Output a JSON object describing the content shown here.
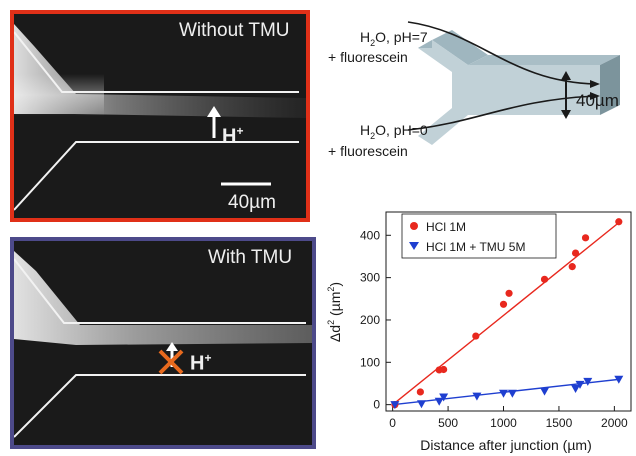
{
  "panel_a": {
    "label": "Without TMU",
    "ion_label": "H",
    "ion_sup": "+",
    "scale_label": "40µm"
  },
  "panel_b": {
    "label": "With TMU",
    "ion_label": "H",
    "ion_sup": "+"
  },
  "schematic": {
    "inlet_top_line1_pre": "H",
    "inlet_top_line1_sub": "2",
    "inlet_top_line1_post": "O, pH=7",
    "inlet_top_line2": "+ fluorescein",
    "inlet_bottom_line1_pre": "H",
    "inlet_bottom_line1_sub": "2",
    "inlet_bottom_line1_post": "O, pH=0",
    "inlet_bottom_line2": "+ fluorescein",
    "width_label": "40µm"
  },
  "chart_data": {
    "type": "scatter",
    "xlabel": "Distance after junction (µm)",
    "ylabel_parts": {
      "pre": "Δd",
      "sup": "2",
      "post": " (µm",
      "sup2": "2",
      "end": ")"
    },
    "xlim": [
      -60,
      2150
    ],
    "ylim": [
      -15,
      455
    ],
    "xticks": [
      0,
      500,
      1000,
      1500,
      2000
    ],
    "yticks": [
      0,
      100,
      200,
      300,
      400
    ],
    "legend_position": "top-left",
    "series": [
      {
        "name": "HCl 1M",
        "color": "#e8281e",
        "marker": "circle",
        "points": [
          [
            20,
            0
          ],
          [
            250,
            30
          ],
          [
            420,
            82
          ],
          [
            460,
            83
          ],
          [
            750,
            162
          ],
          [
            1000,
            237
          ],
          [
            1050,
            263
          ],
          [
            1370,
            296
          ],
          [
            1620,
            326
          ],
          [
            1650,
            358
          ],
          [
            1740,
            394
          ],
          [
            2040,
            432
          ]
        ],
        "fit": [
          [
            0,
            0
          ],
          [
            2050,
            432
          ]
        ]
      },
      {
        "name": "HCl 1M + TMU 5M",
        "color": "#1f3fd0",
        "marker": "triangle-down",
        "points": [
          [
            20,
            0
          ],
          [
            260,
            2
          ],
          [
            420,
            8
          ],
          [
            460,
            18
          ],
          [
            760,
            20
          ],
          [
            1000,
            27
          ],
          [
            1080,
            27
          ],
          [
            1370,
            32
          ],
          [
            1650,
            38
          ],
          [
            1690,
            48
          ],
          [
            1760,
            55
          ],
          [
            2040,
            60
          ]
        ],
        "fit": [
          [
            0,
            0
          ],
          [
            2050,
            60
          ]
        ]
      }
    ]
  }
}
